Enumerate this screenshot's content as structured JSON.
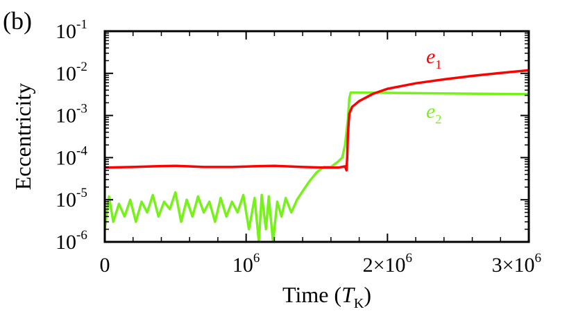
{
  "panel_label": "(b)",
  "chart_data": {
    "type": "line",
    "title": "",
    "panel_label": "(b)",
    "xlabel": {
      "text": "Time (",
      "sym": "T",
      "sub": "K",
      "close": ")"
    },
    "ylabel": "Eccentricity",
    "xlim": [
      0,
      3000000
    ],
    "ylim": [
      1e-06,
      0.1
    ],
    "yscale": "log",
    "x_ticks": [
      {
        "value": 0,
        "base": "0",
        "exp": ""
      },
      {
        "value": 1000000,
        "base": "10",
        "exp": "6"
      },
      {
        "value": 2000000,
        "base": "2×10",
        "exp": "6"
      },
      {
        "value": 3000000,
        "base": "3×10",
        "exp": "6"
      }
    ],
    "y_ticks": [
      {
        "value": 1e-06,
        "base": "10",
        "exp": "-6"
      },
      {
        "value": 1e-05,
        "base": "10",
        "exp": "-5"
      },
      {
        "value": 0.0001,
        "base": "10",
        "exp": "-4"
      },
      {
        "value": 0.001,
        "base": "10",
        "exp": "-3"
      },
      {
        "value": 0.01,
        "base": "10",
        "exp": "-2"
      },
      {
        "value": 0.1,
        "base": "10",
        "exp": "-1"
      }
    ],
    "series": [
      {
        "name": "e1",
        "label": "e",
        "label_sub": "1",
        "color": "#ff0000",
        "x": [
          0,
          200000,
          400000,
          500000,
          700000,
          900000,
          1100000,
          1200000,
          1400000,
          1550000,
          1650000,
          1700000,
          1710000,
          1715000,
          1720000,
          1730000,
          1750000,
          1800000,
          1900000,
          2000000,
          2200000,
          2400000,
          2600000,
          2800000,
          3000000
        ],
        "y": [
          5.8e-05,
          6e-05,
          6.3e-05,
          6.4e-05,
          6e-05,
          6e-05,
          6.3e-05,
          6.4e-05,
          6e-05,
          5.8e-05,
          5.8e-05,
          6.2e-05,
          5e-05,
          0.0001,
          0.00035,
          0.0011,
          0.0016,
          0.0022,
          0.0033,
          0.0043,
          0.0058,
          0.0072,
          0.0087,
          0.0102,
          0.0118
        ]
      },
      {
        "name": "e2",
        "label": "e",
        "label_sub": "2",
        "color": "#76f21a",
        "x": [
          0,
          30000,
          60000,
          100000,
          140000,
          180000,
          220000,
          260000,
          300000,
          340000,
          380000,
          420000,
          460000,
          500000,
          540000,
          580000,
          620000,
          660000,
          700000,
          740000,
          780000,
          820000,
          860000,
          900000,
          940000,
          980000,
          1020000,
          1060000,
          1090000,
          1110000,
          1140000,
          1160000,
          1190000,
          1220000,
          1250000,
          1280000,
          1320000,
          1360000,
          1400000,
          1450000,
          1500000,
          1550000,
          1600000,
          1650000,
          1680000,
          1700000,
          1720000,
          1730000,
          1740000,
          3000000
        ],
        "y": [
          2e-06,
          1.2e-05,
          3e-06,
          8e-06,
          4e-06,
          1e-05,
          3e-06,
          9e-06,
          5e-06,
          1.3e-05,
          4e-06,
          9e-06,
          6e-06,
          1.5e-05,
          3e-06,
          1e-05,
          4e-06,
          1.2e-05,
          5e-06,
          9e-06,
          3e-06,
          1.1e-05,
          4e-06,
          9e-06,
          5e-06,
          1.3e-05,
          2e-06,
          1.1e-05,
          1e-06,
          1.3e-05,
          2e-06,
          1.2e-05,
          1e-06,
          9e-06,
          4e-06,
          1.1e-05,
          5e-06,
          1e-05,
          1.6e-05,
          2.8e-05,
          4.5e-05,
          6e-05,
          6e-05,
          8e-05,
          0.0001,
          0.0002,
          0.0008,
          0.0025,
          0.0035,
          0.0032
        ]
      }
    ]
  }
}
